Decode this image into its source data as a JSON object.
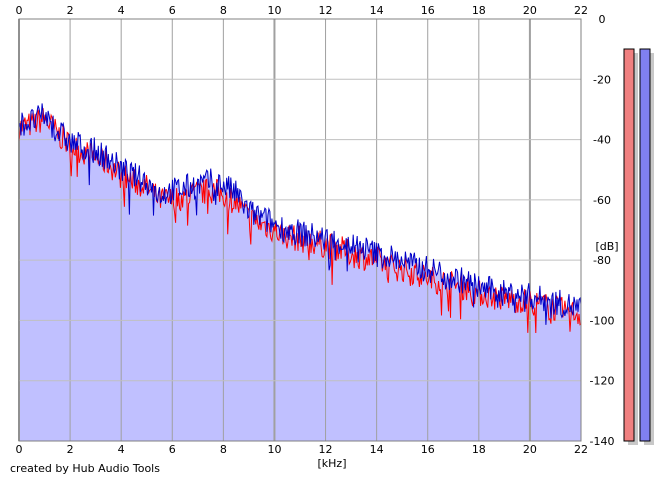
{
  "credit": "created by Hub Audio Tools",
  "chart_data": {
    "type": "area",
    "title": "",
    "xlabel": "[kHz]",
    "ylabel": "[dB]",
    "xlim": [
      0,
      22
    ],
    "ylim": [
      -140,
      0
    ],
    "x_ticks": [
      0,
      2,
      4,
      6,
      8,
      10,
      12,
      14,
      16,
      18,
      20,
      22
    ],
    "y_ticks": [
      0,
      -20,
      -40,
      -60,
      -80,
      -100,
      -120,
      -140
    ],
    "grid": true,
    "colors": {
      "fill": "#c0c0ff",
      "left_channel": "#ff0000",
      "right_channel": "#0000c8",
      "grid_major": "#a0a0a0",
      "meter_left": "#f08080",
      "meter_right": "#8080f0",
      "meter_shadow": "#c8c8c8"
    },
    "series": [
      {
        "color_key": "left_channel",
        "x": [
          0,
          0.5,
          1,
          1.5,
          2,
          2.5,
          3,
          3.5,
          4,
          4.5,
          5,
          5.5,
          6,
          6.5,
          7,
          7.5,
          8,
          8.5,
          9,
          9.5,
          10,
          10.5,
          11,
          11.5,
          12,
          12.5,
          13,
          13.5,
          14,
          14.5,
          15,
          15.5,
          16,
          16.5,
          17,
          17.5,
          18,
          18.5,
          19,
          19.5,
          20,
          20.5,
          21,
          21.5,
          22
        ],
        "values": [
          -36,
          -35,
          -33,
          -38,
          -42,
          -44,
          -46,
          -48,
          -52,
          -54,
          -56,
          -60,
          -60,
          -59,
          -58,
          -57,
          -58,
          -61,
          -66,
          -68,
          -70,
          -72,
          -73,
          -74,
          -75,
          -76,
          -78,
          -79,
          -80,
          -82,
          -83,
          -84,
          -86,
          -87,
          -88,
          -89,
          -91,
          -92,
          -93,
          -93,
          -94,
          -95,
          -96,
          -97,
          -98
        ]
      },
      {
        "color_key": "right_channel",
        "x": [
          0,
          0.5,
          1,
          1.5,
          2,
          2.5,
          3,
          3.5,
          4,
          4.5,
          5,
          5.5,
          6,
          6.5,
          7,
          7.5,
          8,
          8.5,
          9,
          9.5,
          10,
          10.5,
          11,
          11.5,
          12,
          12.5,
          13,
          13.5,
          14,
          14.5,
          15,
          15.5,
          16,
          16.5,
          17,
          17.5,
          18,
          18.5,
          19,
          19.5,
          20,
          20.5,
          21,
          21.5,
          22
        ],
        "values": [
          -35,
          -34,
          -32,
          -37,
          -41,
          -42,
          -44,
          -46,
          -50,
          -52,
          -54,
          -58,
          -57,
          -56,
          -55,
          -54,
          -55,
          -58,
          -64,
          -66,
          -68,
          -70,
          -71,
          -72,
          -73,
          -74,
          -75,
          -76,
          -78,
          -79,
          -80,
          -82,
          -83,
          -84,
          -86,
          -87,
          -89,
          -90,
          -91,
          -91,
          -92,
          -93,
          -94,
          -95,
          -96
        ]
      }
    ],
    "meters": {
      "left_level_db": -140,
      "right_level_db": -140
    }
  }
}
